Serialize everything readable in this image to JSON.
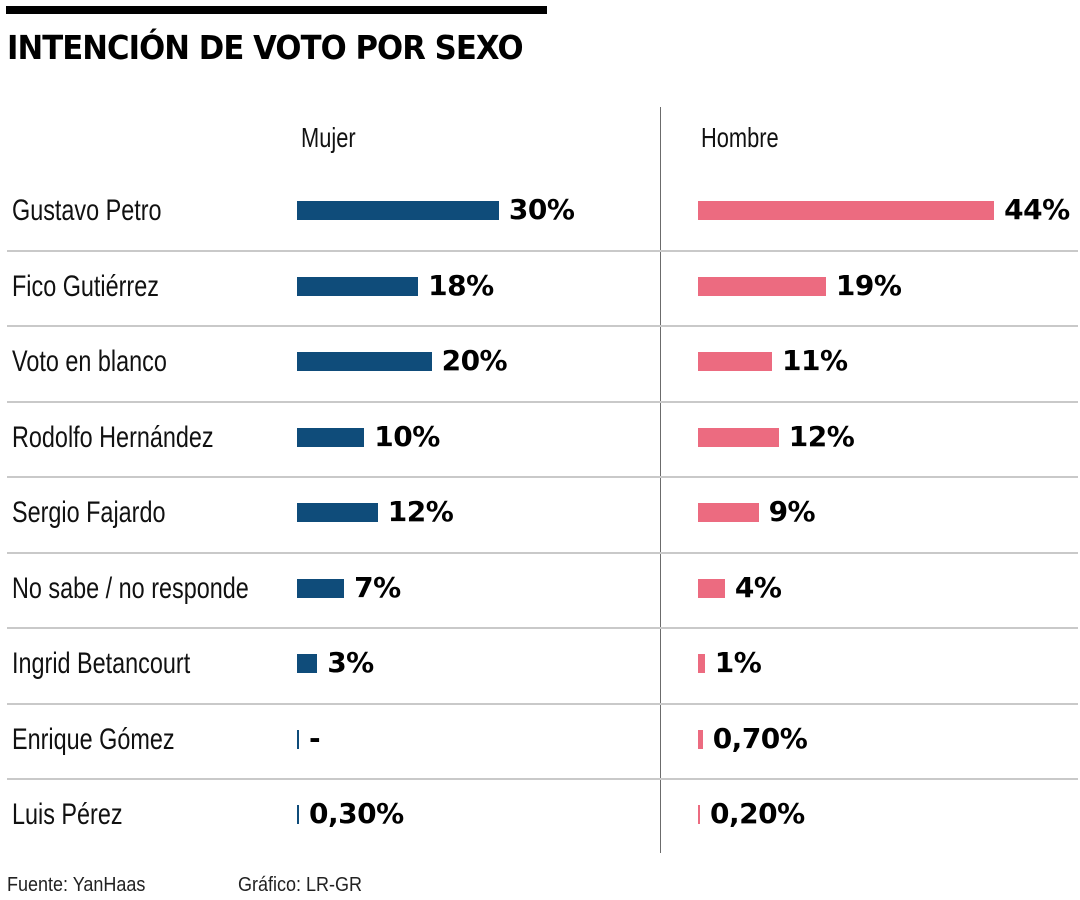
{
  "title": "INTENCIÓN DE VOTO POR SEXO",
  "footer": {
    "source": "Fuente: YanHaas",
    "credit": "Gráfico: LR-GR"
  },
  "colors": {
    "mujer": "#0f4c7a",
    "hombre": "#ec6b80"
  },
  "chart_data": {
    "type": "bar",
    "orientation": "horizontal",
    "title": "INTENCIÓN DE VOTO POR SEXO",
    "xlabel": "",
    "ylabel": "",
    "grid": false,
    "categories": [
      "Gustavo Petro",
      "Fico Gutiérrez",
      "Voto en blanco",
      "Rodolfo Hernández",
      "Sergio Fajardo",
      "No sabe / no responde",
      "Ingrid Betancourt",
      "Enrique Gómez",
      "Luis Pérez"
    ],
    "series": [
      {
        "name": "Mujer",
        "color": "#0f4c7a",
        "values": [
          30,
          18,
          20,
          10,
          12,
          7,
          3,
          null,
          0.3
        ],
        "labels": [
          "30%",
          "18%",
          "20%",
          "10%",
          "12%",
          "7%",
          "3%",
          "-",
          "0,30%"
        ]
      },
      {
        "name": "Hombre",
        "color": "#ec6b80",
        "values": [
          44,
          19,
          11,
          12,
          9,
          4,
          1,
          0.7,
          0.2
        ],
        "labels": [
          "44%",
          "19%",
          "11%",
          "12%",
          "9%",
          "4%",
          "1%",
          "0,70%",
          "0,20%"
        ]
      }
    ],
    "xlim": [
      0,
      50
    ],
    "unit": "%"
  }
}
